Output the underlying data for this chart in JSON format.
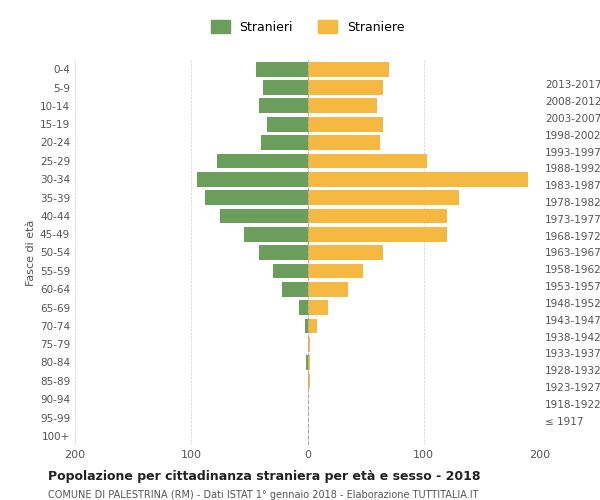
{
  "age_groups": [
    "100+",
    "95-99",
    "90-94",
    "85-89",
    "80-84",
    "75-79",
    "70-74",
    "65-69",
    "60-64",
    "55-59",
    "50-54",
    "45-49",
    "40-44",
    "35-39",
    "30-34",
    "25-29",
    "20-24",
    "15-19",
    "10-14",
    "5-9",
    "0-4"
  ],
  "birth_years": [
    "≤ 1917",
    "1918-1922",
    "1923-1927",
    "1928-1932",
    "1933-1937",
    "1938-1942",
    "1943-1947",
    "1948-1952",
    "1953-1957",
    "1958-1962",
    "1963-1967",
    "1968-1972",
    "1973-1977",
    "1978-1982",
    "1983-1987",
    "1988-1992",
    "1993-1997",
    "1998-2002",
    "2003-2007",
    "2008-2012",
    "2013-2017"
  ],
  "males": [
    0,
    0,
    0,
    0,
    1,
    0,
    2,
    7,
    22,
    30,
    42,
    55,
    75,
    88,
    95,
    78,
    40,
    35,
    42,
    38,
    44
  ],
  "females": [
    0,
    0,
    0,
    2,
    2,
    2,
    8,
    18,
    35,
    48,
    65,
    120,
    120,
    130,
    190,
    103,
    62,
    65,
    60,
    65,
    70
  ],
  "male_color": "#6a9e5a",
  "female_color": "#f5b942",
  "background_color": "#ffffff",
  "grid_color": "#cccccc",
  "title": "Popolazione per cittadinanza straniera per età e sesso - 2018",
  "subtitle": "COMUNE DI PALESTRINA (RM) - Dati ISTAT 1° gennaio 2018 - Elaborazione TUTTITALIA.IT",
  "ylabel_left": "Fasce di età",
  "legend_males": "Stranieri",
  "legend_females": "Straniere",
  "xlim": 200,
  "bar_height": 0.8
}
